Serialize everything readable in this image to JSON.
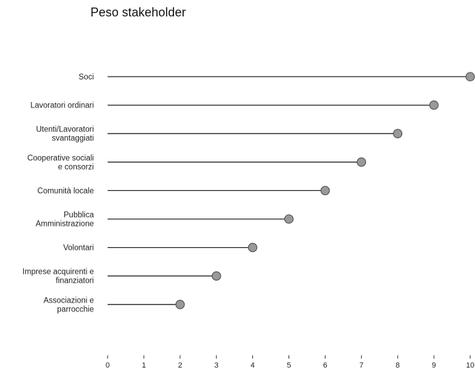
{
  "chart_data": {
    "type": "lollipop",
    "title": "Peso stakeholder",
    "categories": [
      [
        "Soci"
      ],
      [
        "Lavoratori ordinari"
      ],
      [
        "Utenti/Lavoratori",
        "svantaggiati"
      ],
      [
        "Cooperative sociali",
        "e consorzi"
      ],
      [
        "Comunità locale"
      ],
      [
        "Pubblica",
        "Amministrazione"
      ],
      [
        "Volontari"
      ],
      [
        "Imprese acquirenti e",
        "finanziatori"
      ],
      [
        "Associazioni e",
        "parrocchie"
      ]
    ],
    "values": [
      10,
      9,
      8,
      7,
      6,
      5,
      4,
      3,
      2
    ],
    "xlim": [
      0,
      10
    ],
    "xticks": [
      "0",
      "1",
      "2",
      "3",
      "4",
      "5",
      "6",
      "7",
      "8",
      "9",
      "10"
    ],
    "marker_color": "#999999",
    "line_color": "#222222"
  }
}
